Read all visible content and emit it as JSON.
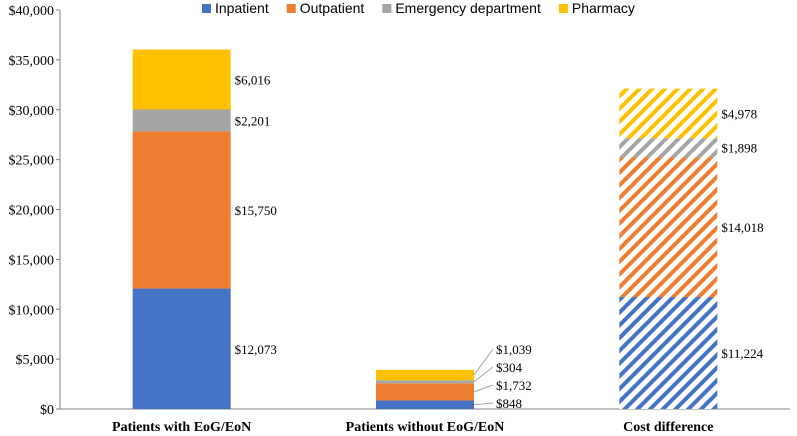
{
  "chart_data": {
    "type": "bar",
    "stacked": true,
    "categories": [
      "Patients with EoG/EoN",
      "Patients without EoG/EoN",
      "Cost difference"
    ],
    "series": [
      {
        "name": "Inpatient",
        "color": "#4472C4",
        "values": [
          12073,
          848,
          11224
        ],
        "labels": [
          "$12,073",
          "$848",
          "$11,224"
        ]
      },
      {
        "name": "Outpatient",
        "color": "#ED7D31",
        "values": [
          15750,
          1732,
          14018
        ],
        "labels": [
          "$15,750",
          "$1,732",
          "$14,018"
        ]
      },
      {
        "name": "Emergency department",
        "color": "#A5A5A5",
        "values": [
          2201,
          304,
          1898
        ],
        "labels": [
          "$2,201",
          "$304",
          "$1,898"
        ]
      },
      {
        "name": "Pharmacy",
        "color": "#FFC000",
        "values": [
          6016,
          1039,
          4978
        ],
        "labels": [
          "$6,016",
          "$1,039",
          "$4,978"
        ]
      }
    ],
    "hatched_categories": [
      "Cost difference"
    ],
    "ylim": [
      0,
      40000
    ],
    "yticks": [
      0,
      5000,
      10000,
      15000,
      20000,
      25000,
      30000,
      35000,
      40000
    ],
    "ytick_labels": [
      "$0",
      "$5,000",
      "$10,000",
      "$15,000",
      "$20,000",
      "$25,000",
      "$30,000",
      "$35,000",
      "$40,000"
    ],
    "title": "",
    "xlabel": "",
    "ylabel": "",
    "legend_position": "top",
    "grid": false
  }
}
